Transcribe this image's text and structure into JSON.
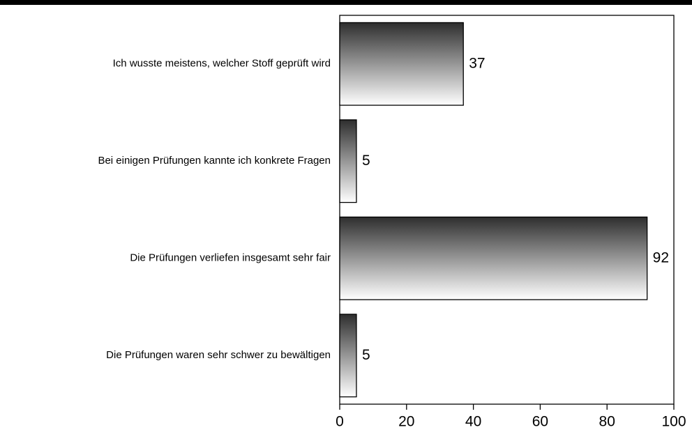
{
  "chart_data": {
    "type": "bar",
    "orientation": "horizontal",
    "categories": [
      "Ich wusste meistens, welcher Stoff geprüft wird",
      "Bei einigen Prüfungen kannte ich konkrete Fragen",
      "Die Prüfungen verliefen insgesamt sehr fair",
      "Die Prüfungen waren sehr schwer zu bewältigen"
    ],
    "values": [
      37,
      5,
      92,
      5
    ],
    "xlim": [
      0,
      100
    ],
    "xticks": [
      0,
      20,
      40,
      60,
      80,
      100
    ]
  }
}
